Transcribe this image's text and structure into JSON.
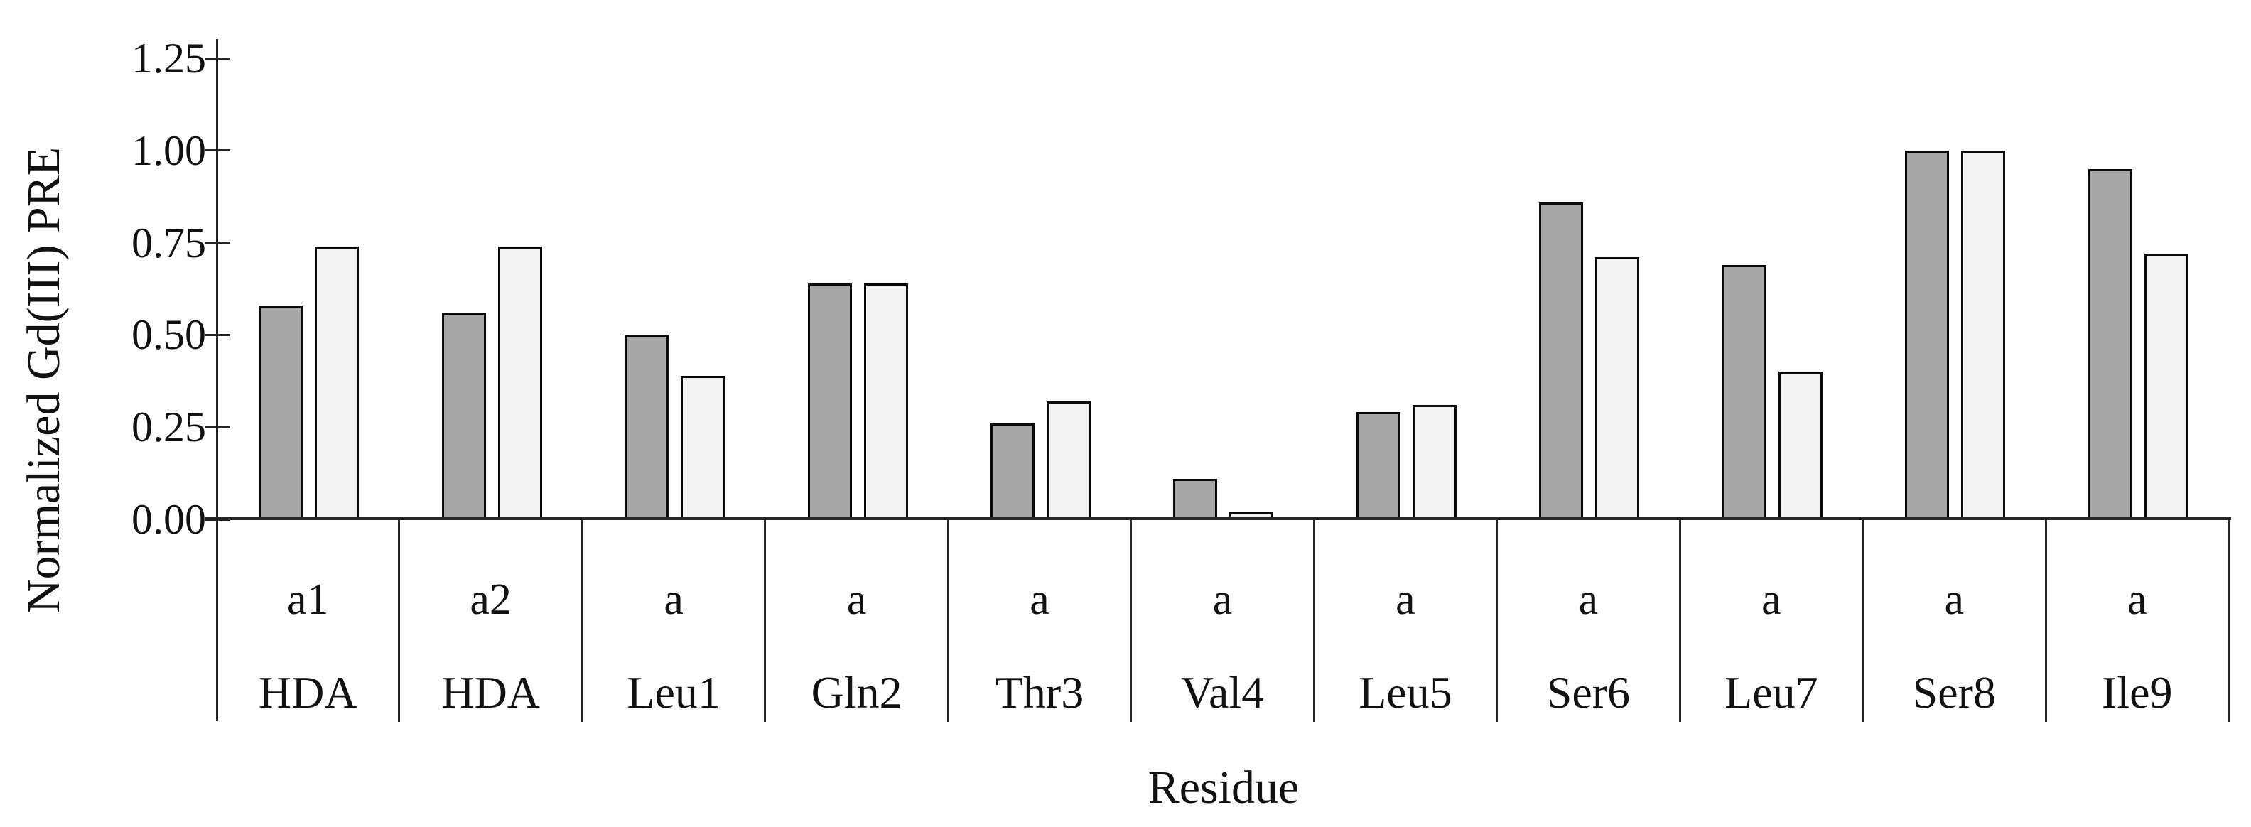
{
  "figure": {
    "background": "#ffffff",
    "text_color": "#111111",
    "axis_color": "#262626"
  },
  "chart_data": {
    "type": "bar",
    "title": "",
    "xlabel": "Residue",
    "ylabel": "Normalized Gd(III) PRE",
    "ylim": [
      0,
      1.25
    ],
    "ytick_values": [
      0,
      0.25,
      0.5,
      0.75,
      1.0,
      1.25
    ],
    "ytick_labels": [
      "0.00",
      "0.25",
      "0.50",
      "0.75",
      "1.00",
      "1.25"
    ],
    "grid": false,
    "legend": "none",
    "categories": [
      {
        "sublabel": "a1",
        "residue": "HDA"
      },
      {
        "sublabel": "a2",
        "residue": "HDA"
      },
      {
        "sublabel": "a",
        "residue": "Leu1"
      },
      {
        "sublabel": "a",
        "residue": "Gln2"
      },
      {
        "sublabel": "a",
        "residue": "Thr3"
      },
      {
        "sublabel": "a",
        "residue": "Val4"
      },
      {
        "sublabel": "a",
        "residue": "Leu5"
      },
      {
        "sublabel": "a",
        "residue": "Ser6"
      },
      {
        "sublabel": "a",
        "residue": "Leu7"
      },
      {
        "sublabel": "a",
        "residue": "Ser8"
      },
      {
        "sublabel": "a",
        "residue": "Ile9"
      }
    ],
    "series": [
      {
        "name": "dark-gray",
        "color": "#a7a7a7",
        "values": [
          0.58,
          0.56,
          0.5,
          0.64,
          0.26,
          0.11,
          0.29,
          0.86,
          0.69,
          1.0,
          0.95
        ]
      },
      {
        "name": "light-gray",
        "color": "#f2f2f2",
        "values": [
          0.74,
          0.74,
          0.39,
          0.64,
          0.32,
          0.02,
          0.31,
          0.71,
          0.4,
          1.0,
          0.72
        ]
      }
    ],
    "bar_border_color": "#0a0a0a"
  }
}
